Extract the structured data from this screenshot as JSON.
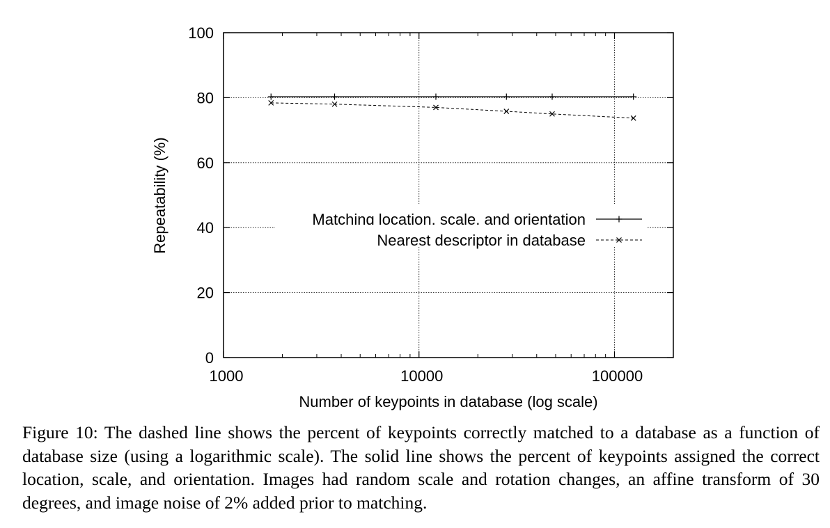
{
  "chart_data": {
    "type": "line",
    "xlabel": "Number of keypoints in database (log scale)",
    "ylabel": "Repeatability (%)",
    "xscale": "log",
    "xlim": [
      1000,
      200000
    ],
    "ylim": [
      0,
      100
    ],
    "x_ticks": [
      {
        "value": 1000,
        "label": "1000"
      },
      {
        "value": 10000,
        "label": "10000"
      },
      {
        "value": 100000,
        "label": "100000"
      }
    ],
    "y_ticks": [
      {
        "value": 0,
        "label": "0"
      },
      {
        "value": 20,
        "label": "20"
      },
      {
        "value": 40,
        "label": "40"
      },
      {
        "value": 60,
        "label": "60"
      },
      {
        "value": 80,
        "label": "80"
      },
      {
        "value": 100,
        "label": "100"
      }
    ],
    "grid": true,
    "legend_position": "center-right",
    "series": [
      {
        "name": "Matching location, scale, and orientation",
        "line_style": "solid",
        "marker": "plus",
        "x": [
          1750,
          3700,
          12200,
          28000,
          48000,
          125000
        ],
        "values": [
          80.3,
          80.3,
          80.3,
          80.3,
          80.3,
          80.3
        ]
      },
      {
        "name": "Nearest descriptor in database",
        "line_style": "dashed",
        "marker": "cross",
        "x": [
          1750,
          3700,
          12200,
          28000,
          48000,
          125000
        ],
        "values": [
          78.4,
          78.0,
          77.0,
          75.8,
          75.0,
          73.7
        ]
      }
    ]
  },
  "caption": "Figure 10:  The dashed line shows the percent of keypoints correctly matched to a database as a function of database size (using a logarithmic scale).  The solid line shows the percent of keypoints assigned the correct location, scale, and orientation. Images had random scale and rotation changes, an affine transform of 30 degrees, and image noise of 2% added prior to matching."
}
